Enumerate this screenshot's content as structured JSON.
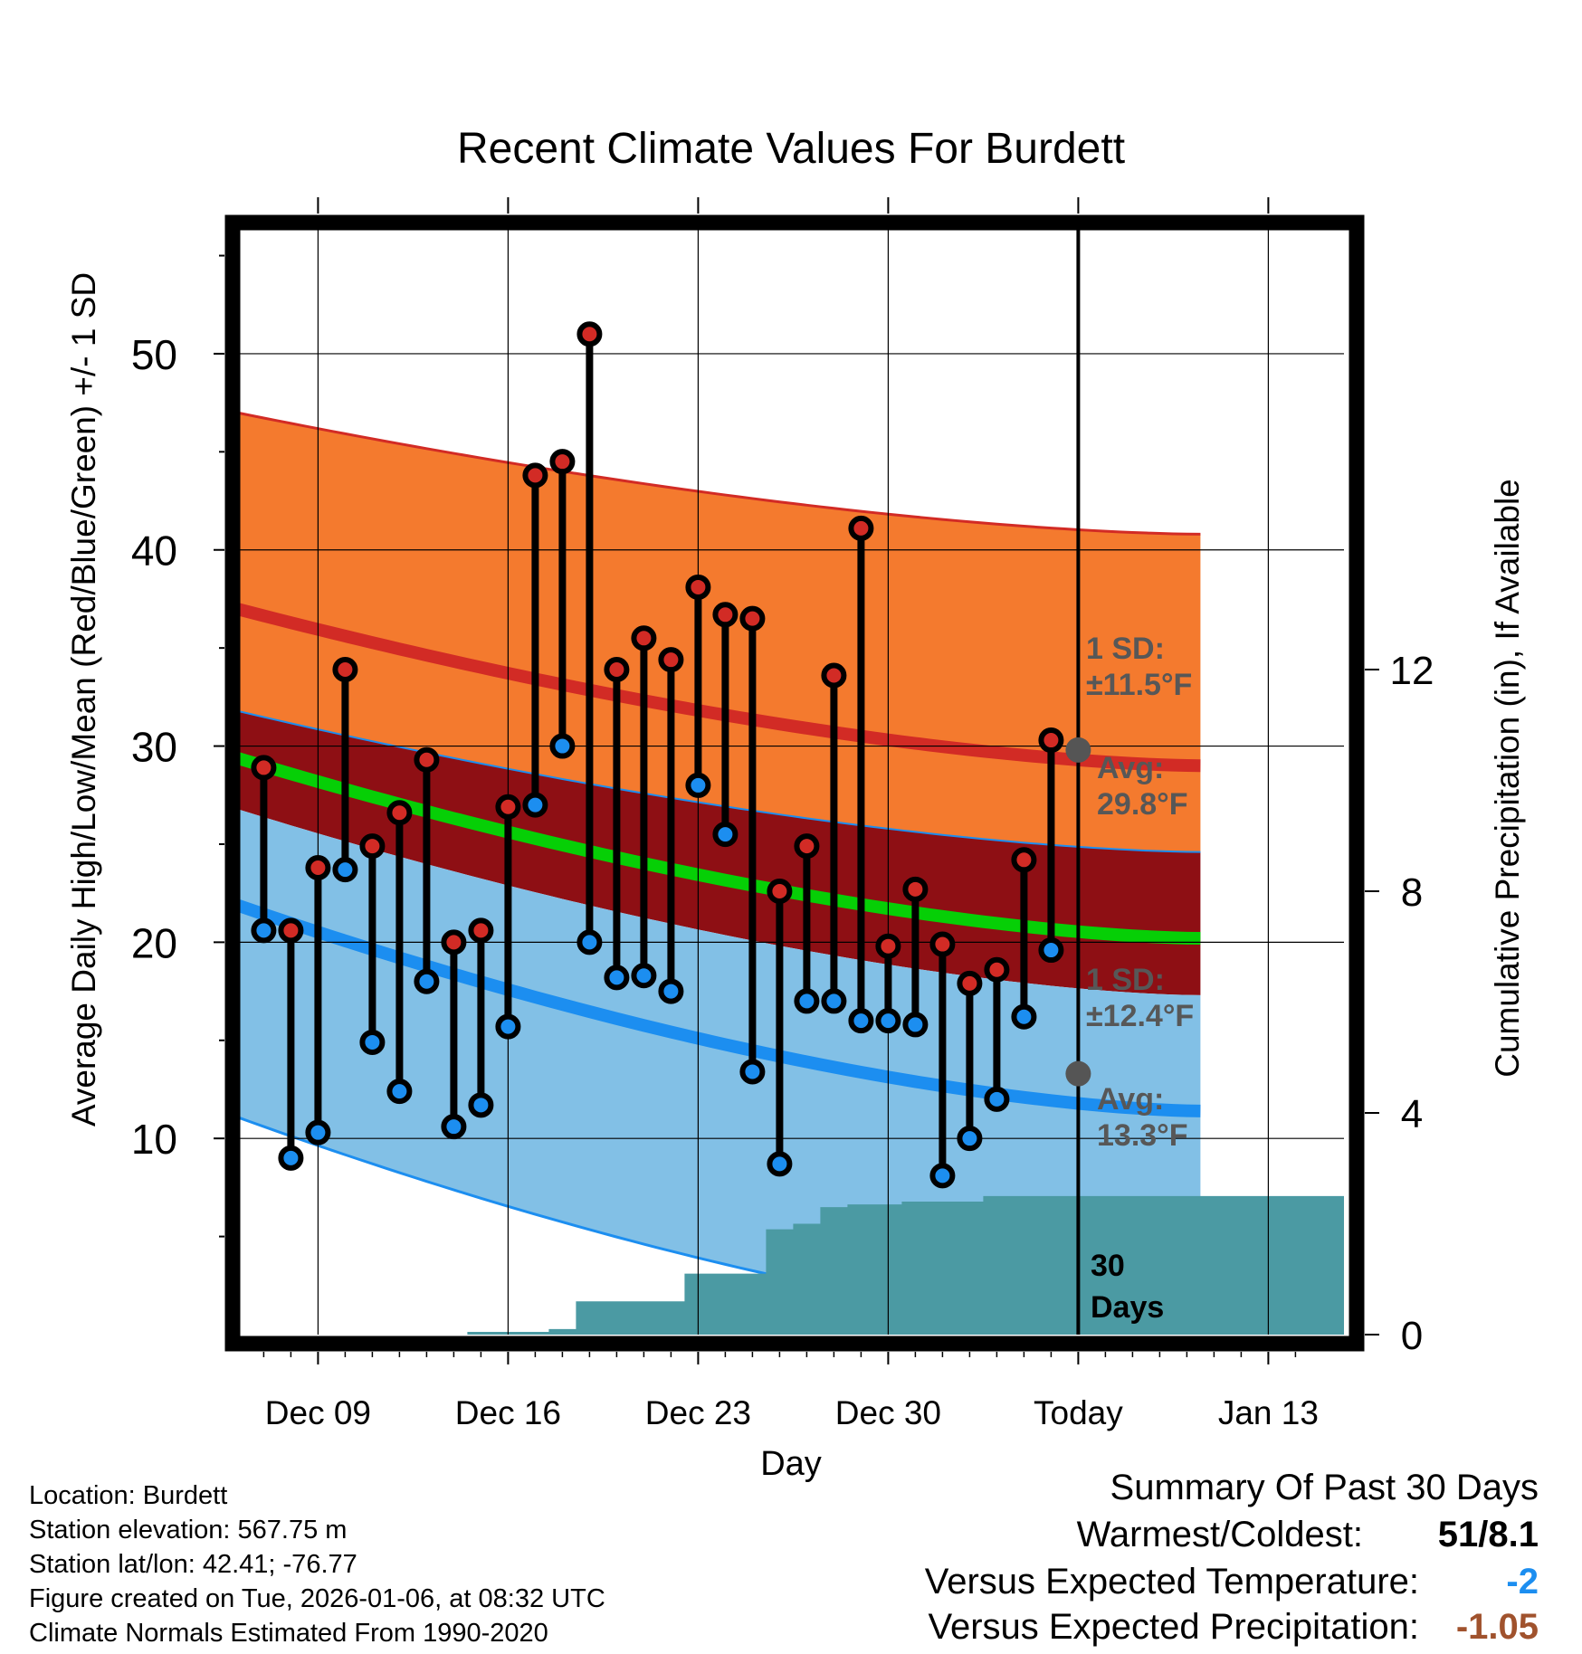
{
  "chart_data": {
    "type": "line",
    "title": "Recent Climate Values For Burdett",
    "xlabel": "Day",
    "ylabel": "Average Daily High/Low/Mean (Red/Blue/Green) +/- 1 SD",
    "y2label": "Cumulative Precipitation (in), If Available",
    "ylim": [
      0,
      56.5
    ],
    "y2lim": [
      0,
      20
    ],
    "yticks": [
      "10",
      "20",
      "30",
      "40",
      "50"
    ],
    "y2ticks": [
      "0",
      "4",
      "8",
      "12"
    ],
    "x_tick_labels": [
      "Dec 09",
      "Dec 16",
      "Dec 23",
      "Dec 30",
      "Today",
      "Jan 13"
    ],
    "days": [
      "Dec 07",
      "Dec 08",
      "Dec 09",
      "Dec 10",
      "Dec 11",
      "Dec 12",
      "Dec 13",
      "Dec 14",
      "Dec 15",
      "Dec 16",
      "Dec 17",
      "Dec 18",
      "Dec 19",
      "Dec 20",
      "Dec 21",
      "Dec 22",
      "Dec 23",
      "Dec 24",
      "Dec 25",
      "Dec 26",
      "Dec 27",
      "Dec 28",
      "Dec 29",
      "Dec 30",
      "Dec 31",
      "Jan 01",
      "Jan 02",
      "Jan 03",
      "Jan 04",
      "Jan 05"
    ],
    "daily_high": [
      28.9,
      20.6,
      23.8,
      33.9,
      24.9,
      26.6,
      29.3,
      20.0,
      20.6,
      26.9,
      43.8,
      44.5,
      51.0,
      33.9,
      35.5,
      34.4,
      38.1,
      36.7,
      36.5,
      22.6,
      24.9,
      33.6,
      41.1,
      19.8,
      22.7,
      19.9,
      17.9,
      18.6,
      24.2,
      30.3
    ],
    "daily_low": [
      20.6,
      9.0,
      10.3,
      23.7,
      14.9,
      12.4,
      18.0,
      10.6,
      11.7,
      15.7,
      27.0,
      30.0,
      20.0,
      18.2,
      18.3,
      17.5,
      28.0,
      25.5,
      13.4,
      8.7,
      17.0,
      17.0,
      16.0,
      16.0,
      15.8,
      8.1,
      10.0,
      12.0,
      16.2,
      19.6
    ],
    "normal_high_mean": {
      "start": 37.0,
      "today": 29.8,
      "end": 29.0
    },
    "normal_high_upper": {
      "start": 47.0,
      "end": 40.8
    },
    "normal_high_lower": {
      "start": 26.8,
      "end": 17.3
    },
    "normal_low_mean": {
      "start": 21.9,
      "today": 13.3,
      "end": 11.4
    },
    "normal_low_upper": {
      "start": 31.8,
      "end": 24.6
    },
    "normal_low_lower": {
      "start": 11.1,
      "end": 0.0
    },
    "normal_daily_mean": {
      "start": 29.4,
      "end": 20.2
    },
    "cumulative_precip": [
      0,
      0,
      0,
      0,
      0,
      0,
      0,
      0,
      0.05,
      0.05,
      0.05,
      0.1,
      0.6,
      0.6,
      0.6,
      0.6,
      1.1,
      1.1,
      1.1,
      1.9,
      2.0,
      2.3,
      2.35,
      2.35,
      2.4,
      2.4,
      2.4,
      2.5,
      2.5,
      2.5,
      2.5
    ],
    "annotations": {
      "high_sd": [
        "1 SD:",
        "±11.5°F"
      ],
      "high_avg": [
        "Avg:",
        "29.8°F"
      ],
      "low_sd": [
        "1 SD:",
        "±12.4°F"
      ],
      "low_avg": [
        "Avg:",
        "13.3°F"
      ],
      "period": [
        "30",
        "Days"
      ]
    },
    "colors": {
      "high_band": "#f47a2e",
      "overlap_band": "#8e0f14",
      "low_band": "#82c0e6",
      "high_mean": "#d22b25",
      "low_mean": "#1c8ef0",
      "daily_mean": "#06cf06",
      "precip": "#4b9aa3",
      "high_marker": "#d22b25",
      "low_marker": "#1c8ef0"
    }
  },
  "info": {
    "location": "Location: Burdett",
    "elevation": "Station elevation: 567.75 m",
    "latlon": "Station lat/lon: 42.41; -76.77",
    "created": "Figure created on Tue, 2026-01-06, at 08:32 UTC",
    "normals": "Climate Normals Estimated From 1990-2020"
  },
  "summary": {
    "title": "Summary Of Past 30 Days",
    "warmest_label": "Warmest/Coldest:",
    "warmest_value": "51/8.1",
    "temp_label": "Versus Expected Temperature:",
    "temp_value": "-2",
    "temp_color": "#1c8ef0",
    "precip_label": "Versus Expected Precipitation:",
    "precip_value": "-1.05",
    "precip_color": "#a0522d"
  }
}
